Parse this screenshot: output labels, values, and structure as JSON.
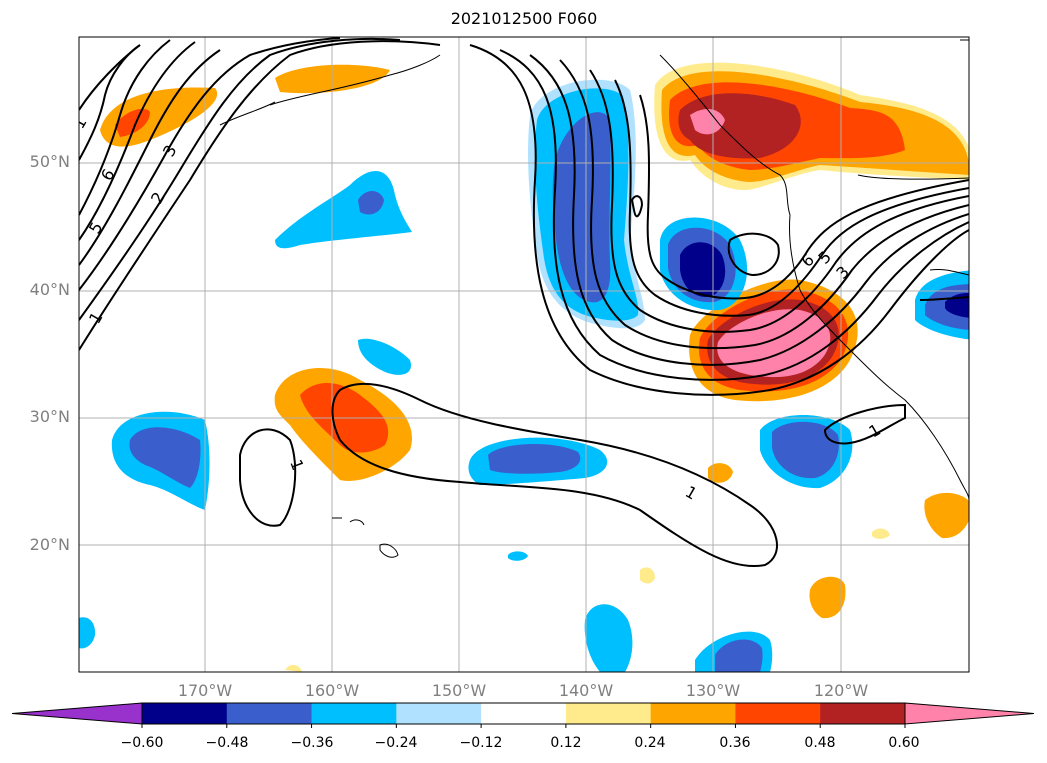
{
  "title": "2021012500 F060",
  "lat_labels": [
    "50°N",
    "40°N",
    "30°N",
    "20°N"
  ],
  "lon_labels": [
    "170°W",
    "160°W",
    "150°W",
    "140°W",
    "130°W",
    "120°W"
  ],
  "contour_labels": [
    "1",
    "2",
    "3",
    "5",
    "6",
    "1",
    "5",
    "6",
    "3",
    "1",
    "1",
    "1"
  ],
  "colorbar": {
    "ticks": [
      "−0.60",
      "−0.48",
      "−0.36",
      "−0.24",
      "−0.12",
      "0.12",
      "0.24",
      "0.36",
      "0.48",
      "0.60"
    ],
    "colors": [
      "#9932cc",
      "#00008b",
      "#3a5fcd",
      "#00bfff",
      "#b0e2ff",
      "#ffffff",
      "#ffeb8c",
      "#ffa500",
      "#ff4500",
      "#b22222",
      "#ff82ab"
    ]
  },
  "shading_colors": {
    "very_negative": "#00008b",
    "strong_negative": "#3a5fcd",
    "moderate_negative": "#00bfff",
    "weak_negative": "#b0e2ff",
    "weak_positive": "#ffeb8c",
    "moderate_positive": "#ffa500",
    "strong_positive": "#ff4500",
    "very_positive": "#b22222",
    "extreme_positive": "#ff82ab"
  }
}
